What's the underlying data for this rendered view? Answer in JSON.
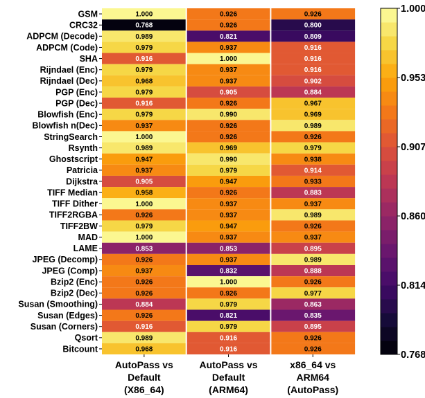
{
  "chart_data": {
    "type": "heatmap",
    "title": "",
    "xlabel": "",
    "ylabel": "",
    "columns": [
      [
        "AutoPass vs",
        "Default",
        "(X86_64)"
      ],
      [
        "AutoPass vs",
        "Default",
        "(ARM64)"
      ],
      [
        "x86_64 vs",
        "ARM64",
        "(AutoPass)"
      ]
    ],
    "rows": [
      "GSM",
      "CRC32",
      "ADPCM (Decode)",
      "ADPCM (Code)",
      "SHA",
      "Rijndael (Enc)",
      "Rijndael (Dec)",
      "PGP (Enc)",
      "PGP (Dec)",
      "Blowfish (Enc)",
      "Blowfish n(Dec)",
      "StringSearch",
      "Rsynth",
      "Ghostscript",
      "Patricia",
      "Dijkstra",
      "TIFF Median",
      "TIFF Dither",
      "TIFF2RGBA",
      "TIFF2BW",
      "MAD",
      "LAME",
      "JPEG (Decomp)",
      "JPEG (Comp)",
      "Bzip2 (Enc)",
      "Bzip2 (Dec)",
      "Susan (Smoothing)",
      "Susan (Edges)",
      "Susan (Corners)",
      "Qsort",
      "Bitcount"
    ],
    "values": [
      [
        1.0,
        0.926,
        0.926
      ],
      [
        0.768,
        0.926,
        0.8
      ],
      [
        0.989,
        0.821,
        0.809
      ],
      [
        0.979,
        0.937,
        0.916
      ],
      [
        0.916,
        1.0,
        0.916
      ],
      [
        0.979,
        0.937,
        0.916
      ],
      [
        0.968,
        0.937,
        0.902
      ],
      [
        0.979,
        0.905,
        0.884
      ],
      [
        0.916,
        0.926,
        0.967
      ],
      [
        0.979,
        0.99,
        0.969
      ],
      [
        0.937,
        0.926,
        0.989
      ],
      [
        1.0,
        0.926,
        0.926
      ],
      [
        0.989,
        0.969,
        0.979
      ],
      [
        0.947,
        0.99,
        0.938
      ],
      [
        0.937,
        0.979,
        0.914
      ],
      [
        0.905,
        0.947,
        0.933
      ],
      [
        0.958,
        0.926,
        0.883
      ],
      [
        1.0,
        0.937,
        0.937
      ],
      [
        0.926,
        0.937,
        0.989
      ],
      [
        0.979,
        0.947,
        0.926
      ],
      [
        1.0,
        0.937,
        0.937
      ],
      [
        0.853,
        0.853,
        0.895
      ],
      [
        0.926,
        0.937,
        0.989
      ],
      [
        0.937,
        0.832,
        0.888
      ],
      [
        0.926,
        1.0,
        0.926
      ],
      [
        0.926,
        0.926,
        0.977
      ],
      [
        0.884,
        0.979,
        0.863
      ],
      [
        0.926,
        0.821,
        0.835
      ],
      [
        0.916,
        0.979,
        0.895
      ],
      [
        0.989,
        0.916,
        0.926
      ],
      [
        0.968,
        0.916,
        0.926
      ]
    ],
    "value_format": "0.000",
    "colormap": "inferno",
    "vmin": 0.768,
    "vmax": 1.0,
    "colorbar_ticks": [
      "1.000",
      "0.9536",
      "0.9072",
      "0.8608",
      "0.8144",
      "0.7680"
    ],
    "colorbar_tick_values": [
      1.0,
      0.9536,
      0.9072,
      0.8608,
      0.8144,
      0.768
    ],
    "grid": false,
    "legend": "colorbar-right"
  }
}
